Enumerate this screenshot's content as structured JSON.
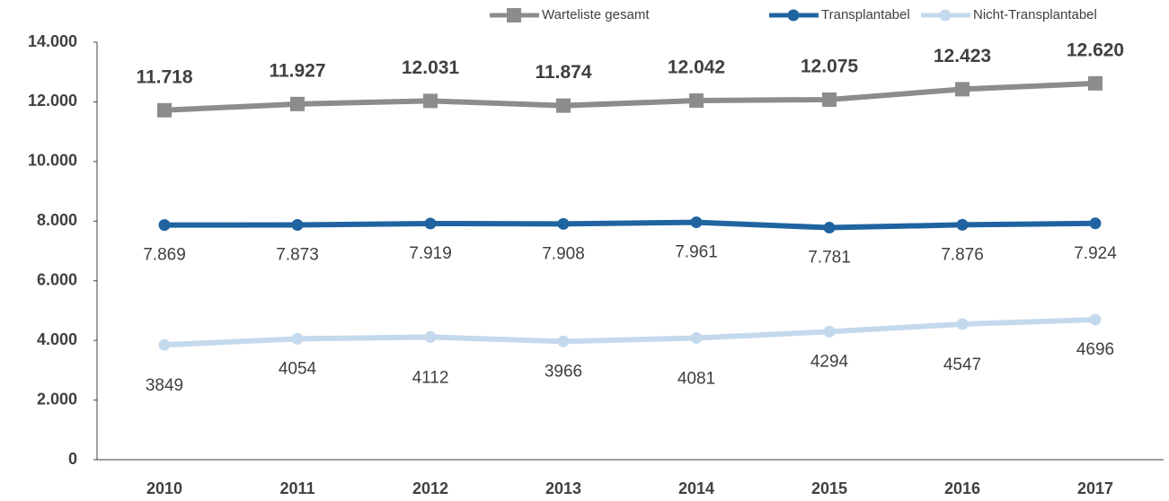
{
  "chart_data": {
    "type": "line",
    "categories": [
      "2010",
      "2011",
      "2012",
      "2013",
      "2014",
      "2015",
      "2016",
      "2017"
    ],
    "series": [
      {
        "name": "Warteliste gesamt",
        "color": "#8c8c8c",
        "marker": "square",
        "values": [
          11718,
          11927,
          12031,
          11874,
          12042,
          12075,
          12423,
          12620
        ],
        "value_labels": [
          "11.718",
          "11.927",
          "12.031",
          "11.874",
          "12.042",
          "12.075",
          "12.423",
          "12.620"
        ]
      },
      {
        "name": "Transplantabel",
        "color": "#1f64a0",
        "marker": "circle",
        "values": [
          7869,
          7873,
          7919,
          7908,
          7961,
          7781,
          7876,
          7924
        ],
        "value_labels": [
          "7.869",
          "7.873",
          "7.919",
          "7.908",
          "7.961",
          "7.781",
          "7.876",
          "7.924"
        ]
      },
      {
        "name": "Nicht-Transplantabel",
        "color": "#c5d9ed",
        "marker": "circle",
        "values": [
          3849,
          4054,
          4112,
          3966,
          4081,
          4294,
          4547,
          4696
        ]
      }
    ],
    "ylim": [
      0,
      14000
    ],
    "yticks": [
      0,
      {
        "value": 2000,
        "label": "2.000"
      },
      {
        "value": 4000,
        "label": "4.000"
      },
      {
        "value": 6000,
        "label": "6.000"
      },
      {
        "value": 8000,
        "label": "8.000"
      },
      {
        "value": 10000,
        "label": "10.000"
      },
      {
        "value": 12000,
        "label": "12.000"
      },
      {
        "value": 14000,
        "label": "14.000"
      }
    ],
    "legend": "top-right"
  }
}
